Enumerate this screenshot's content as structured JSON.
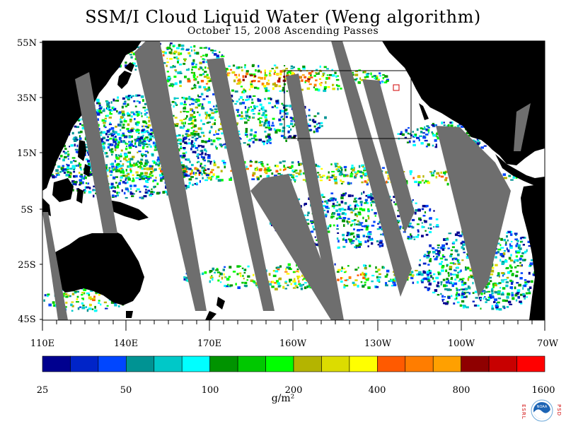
{
  "title": "SSM/I Cloud Liquid Water (Weng algorithm)",
  "subtitle": "October 15, 2008  Ascending Passes",
  "map": {
    "lat_labels": [
      "55N",
      "35N",
      "15N",
      "5S",
      "25S",
      "45S"
    ],
    "lon_labels": [
      "110E",
      "140E",
      "170E",
      "160W",
      "130W",
      "100W",
      "70W"
    ],
    "land_color": "#000000",
    "no_data_color": "#6e6e6e",
    "ocean_clear_color": "#ffffff"
  },
  "colorbar": {
    "colors": [
      "#00008f",
      "#0024c8",
      "#0046ff",
      "#009393",
      "#00c8c8",
      "#00ffff",
      "#009300",
      "#00c800",
      "#00ff00",
      "#b4b400",
      "#dcdc00",
      "#ffff00",
      "#ff5a00",
      "#ff7d00",
      "#ffa000",
      "#8f0000",
      "#c80000",
      "#ff0000"
    ],
    "labels": [
      "25",
      "50",
      "100",
      "200",
      "400",
      "800",
      "1600"
    ],
    "unit": "g/m²"
  },
  "logo": {
    "left_letters": "ESRL",
    "right_letters": "PSD",
    "center_text": "NOAA"
  }
}
